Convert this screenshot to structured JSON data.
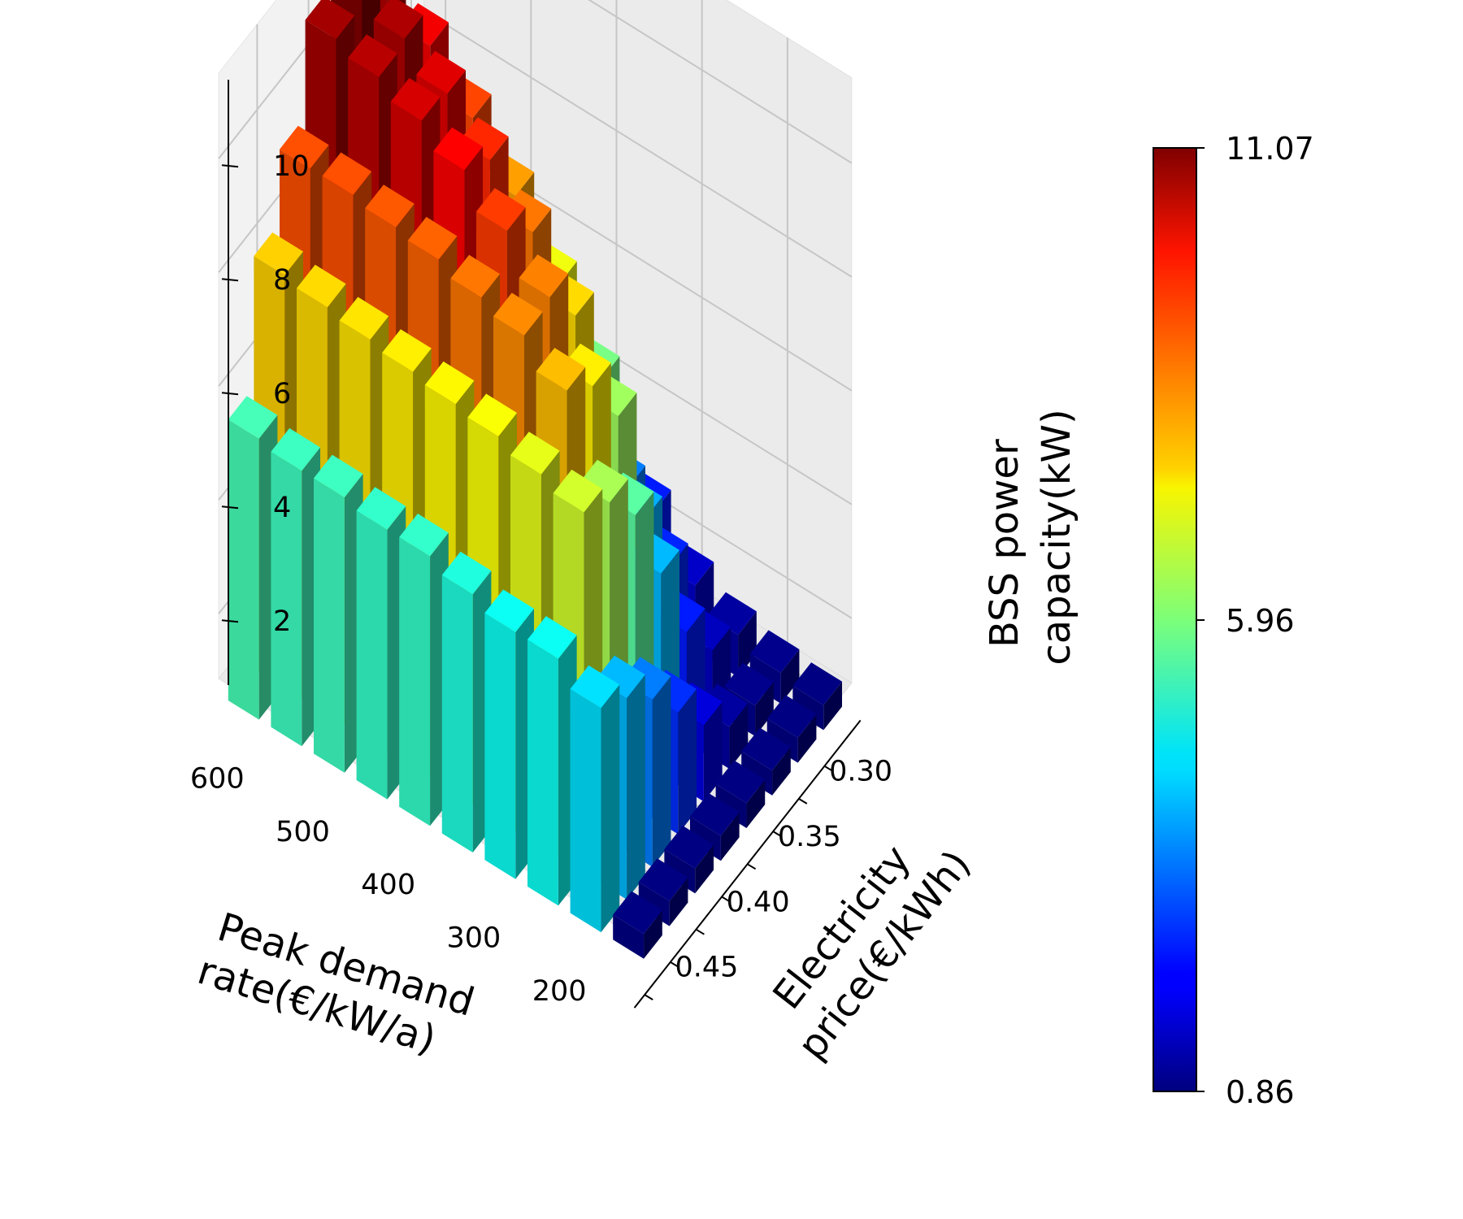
{
  "chart_data": {
    "type": "bar3d",
    "title": "",
    "xlabel": "Peak demand rate(€/kW/a)",
    "ylabel": "Electricity price(€/kWh)",
    "zlabel": "BSS power capacity(kW)",
    "xlabel_lines": [
      "Peak demand",
      "rate(€/kW/a)"
    ],
    "ylabel_lines": [
      "Electricity",
      "price(€/kWh)"
    ],
    "zlabel_lines": [
      "BSS power",
      "capacity(kW)"
    ],
    "x_ticks": [
      "600",
      "500",
      "400",
      "300",
      "200"
    ],
    "y_ticks": [
      "0.30",
      "0.35",
      "0.40",
      "0.45"
    ],
    "z_ticks": [
      "2",
      "4",
      "6",
      "8",
      "10"
    ],
    "x_values": [
      200,
      250,
      300,
      350,
      400,
      450,
      500,
      550,
      600,
      650
    ],
    "y_values": [
      0.3,
      0.325,
      0.35,
      0.375,
      0.4,
      0.425,
      0.45,
      0.475
    ],
    "zlim": [
      0.86,
      11.5
    ],
    "grid": true,
    "colormap": "jet",
    "colorbar": {
      "min_label": "0.86",
      "mid_label": "5.96",
      "max_label": "11.07",
      "min": 0.86,
      "mid": 5.96,
      "max": 11.07
    },
    "values_note": "rows indexed by electricity price (0.30 → 0.475), columns by peak demand rate (200 → 650)",
    "values": [
      [
        0.9,
        1.0,
        1.2,
        1.6,
        2.4,
        2.9,
        3.2,
        3.6,
        4.2,
        4.6
      ],
      [
        0.9,
        1.0,
        1.5,
        2.5,
        3.4,
        4.3,
        5.5,
        6.4,
        7.5,
        8.2
      ],
      [
        0.9,
        1.2,
        2.4,
        3.9,
        5.9,
        7.1,
        8.2,
        9.1,
        9.9,
        10.6
      ],
      [
        0.9,
        1.8,
        4.0,
        6.3,
        7.6,
        8.6,
        9.4,
        10.1,
        10.6,
        11.07
      ],
      [
        0.9,
        2.6,
        5.6,
        7.4,
        8.5,
        9.2,
        9.8,
        10.2,
        10.5,
        10.7
      ],
      [
        0.9,
        3.4,
        6.4,
        7.9,
        8.4,
        8.6,
        8.8,
        8.9,
        9.0,
        9.0
      ],
      [
        0.9,
        4.0,
        6.8,
        7.0,
        7.2,
        7.3,
        7.4,
        7.5,
        7.6,
        7.7
      ],
      [
        0.9,
        4.4,
        4.8,
        4.8,
        5.0,
        5.2,
        5.2,
        5.3,
        5.3,
        5.4
      ]
    ]
  }
}
